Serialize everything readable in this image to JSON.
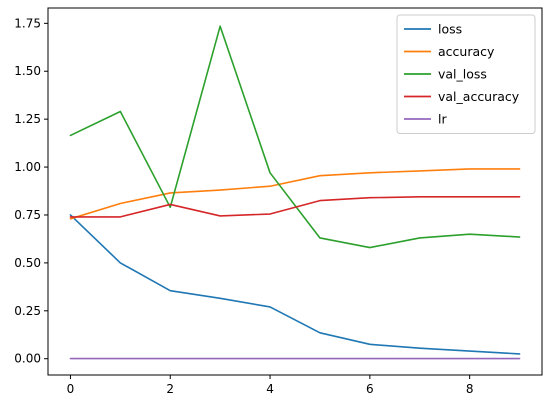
{
  "chart_data": {
    "type": "line",
    "x": [
      0,
      1,
      2,
      3,
      4,
      5,
      6,
      7,
      8,
      9
    ],
    "xlim": [
      -0.45,
      9.45
    ],
    "ylim": [
      -0.085,
      1.83
    ],
    "x_ticks": [
      0,
      2,
      4,
      6,
      8
    ],
    "x_tick_labels": [
      "0",
      "2",
      "4",
      "6",
      "8"
    ],
    "y_ticks": [
      0.0,
      0.25,
      0.5,
      0.75,
      1.0,
      1.25,
      1.5,
      1.75
    ],
    "y_tick_labels": [
      "0.00",
      "0.25",
      "0.50",
      "0.75",
      "1.00",
      "1.25",
      "1.50",
      "1.75"
    ],
    "grid": false,
    "legend_position": "top-right",
    "series": [
      {
        "name": "loss",
        "color": "#1f77b4",
        "values": [
          0.75,
          0.5,
          0.355,
          0.315,
          0.27,
          0.135,
          0.075,
          0.055,
          0.04,
          0.025
        ]
      },
      {
        "name": "accuracy",
        "color": "#ff7f0e",
        "values": [
          0.73,
          0.81,
          0.865,
          0.88,
          0.9,
          0.955,
          0.97,
          0.98,
          0.99,
          0.99
        ]
      },
      {
        "name": "val_loss",
        "color": "#2ca02c",
        "values": [
          1.165,
          1.29,
          0.79,
          1.735,
          0.97,
          0.63,
          0.58,
          0.63,
          0.65,
          0.635
        ]
      },
      {
        "name": "val_accuracy",
        "color": "#d62728",
        "values": [
          0.74,
          0.74,
          0.805,
          0.745,
          0.755,
          0.825,
          0.84,
          0.845,
          0.845,
          0.845
        ]
      },
      {
        "name": "lr",
        "color": "#9467bd",
        "values": [
          0.001,
          0.001,
          0.001,
          0.001,
          0.001,
          0.001,
          0.001,
          0.001,
          0.001,
          0.001
        ]
      }
    ]
  }
}
